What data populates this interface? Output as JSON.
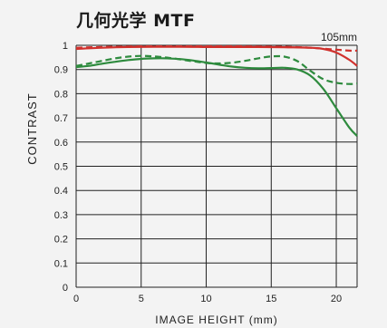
{
  "title": "几何光学 MTF",
  "focal_length": "105mm",
  "chart_data": {
    "type": "line",
    "xlabel": "IMAGE HEIGHT (mm)",
    "ylabel": "CONTRAST",
    "xlim": [
      0,
      21.6
    ],
    "ylim": [
      0,
      1
    ],
    "x_ticks": [
      "0",
      "5",
      "10",
      "15",
      "20"
    ],
    "x_tick_values": [
      0,
      5,
      10,
      15,
      20
    ],
    "y_ticks": [
      "0",
      "0.1",
      "0.2",
      "0.3",
      "0.4",
      "0.5",
      "0.6",
      "0.7",
      "0.8",
      "0.9",
      "1"
    ],
    "y_tick_values": [
      0,
      0.1,
      0.2,
      0.3,
      0.4,
      0.5,
      0.6,
      0.7,
      0.8,
      0.9,
      1
    ],
    "grid": true,
    "series": [
      {
        "color": "#d0312d",
        "style": "solid",
        "x": [
          0,
          2,
          4,
          6,
          8,
          10,
          12,
          14,
          16,
          18,
          19,
          20,
          21,
          21.6
        ],
        "y": [
          0.985,
          0.99,
          0.993,
          0.994,
          0.994,
          0.993,
          0.993,
          0.993,
          0.992,
          0.99,
          0.985,
          0.97,
          0.94,
          0.915
        ]
      },
      {
        "color": "#d0312d",
        "style": "dashed",
        "x": [
          0,
          2,
          4,
          6,
          8,
          10,
          12,
          14,
          16,
          18,
          20,
          21,
          21.6
        ],
        "y": [
          0.99,
          0.993,
          0.995,
          0.996,
          0.996,
          0.996,
          0.996,
          0.995,
          0.994,
          0.99,
          0.982,
          0.978,
          0.978
        ]
      },
      {
        "color": "#2e8b3e",
        "style": "solid",
        "x": [
          0,
          1,
          2,
          3,
          4,
          5,
          6,
          7,
          8,
          9,
          10,
          11,
          12,
          13,
          14,
          15,
          16,
          17,
          18,
          19,
          20,
          21,
          21.6
        ],
        "y": [
          0.91,
          0.915,
          0.924,
          0.932,
          0.939,
          0.944,
          0.946,
          0.946,
          0.943,
          0.937,
          0.929,
          0.92,
          0.912,
          0.907,
          0.905,
          0.906,
          0.907,
          0.9,
          0.875,
          0.82,
          0.74,
          0.66,
          0.625
        ]
      },
      {
        "color": "#2e8b3e",
        "style": "dashed",
        "x": [
          0,
          1,
          2,
          3,
          4,
          5,
          6,
          7,
          8,
          9,
          10,
          11,
          12,
          13,
          14,
          15,
          16,
          17,
          18,
          19,
          20,
          21,
          21.6
        ],
        "y": [
          0.915,
          0.925,
          0.936,
          0.946,
          0.953,
          0.956,
          0.954,
          0.949,
          0.942,
          0.934,
          0.927,
          0.925,
          0.928,
          0.936,
          0.946,
          0.954,
          0.953,
          0.935,
          0.895,
          0.86,
          0.845,
          0.84,
          0.842
        ]
      }
    ]
  }
}
